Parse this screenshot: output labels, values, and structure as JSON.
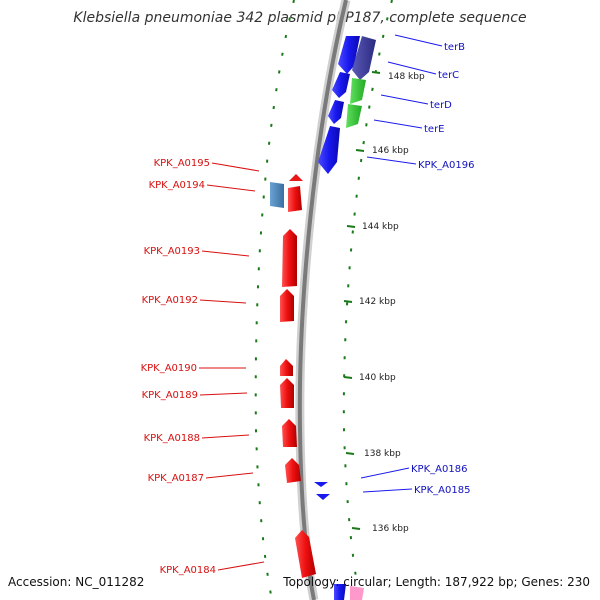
{
  "title": "Klebsiella pneumoniae 342 plasmid pKP187, complete sequence",
  "footer": {
    "accession": "Accession: NC_011282",
    "summary": "Topology: circular; Length: 187,922 bp; Genes: 230"
  },
  "scale_labels": [
    "148 kbp",
    "146 kbp",
    "144 kbp",
    "142 kbp",
    "140 kbp",
    "138 kbp",
    "136 kbp"
  ],
  "genes_reverse": [
    "KPK_A0195",
    "KPK_A0194",
    "KPK_A0193",
    "KPK_A0192",
    "KPK_A0190",
    "KPK_A0189",
    "KPK_A0188",
    "KPK_A0187",
    "KPK_A0184"
  ],
  "genes_forward": [
    "terB",
    "terC",
    "terD",
    "terE",
    "KPK_A0196",
    "KPK_A0186",
    "KPK_A0185"
  ],
  "colors": {
    "reverse_gene": "#e81818",
    "forward_gene": "#1a1aee",
    "ter_dark": "#3a3a9a",
    "ter_green": "#33cc33",
    "steel_blue": "#4682b4",
    "backbone": "#808080",
    "ticks": "#1a7a1a",
    "pink": "#ff99cc"
  }
}
